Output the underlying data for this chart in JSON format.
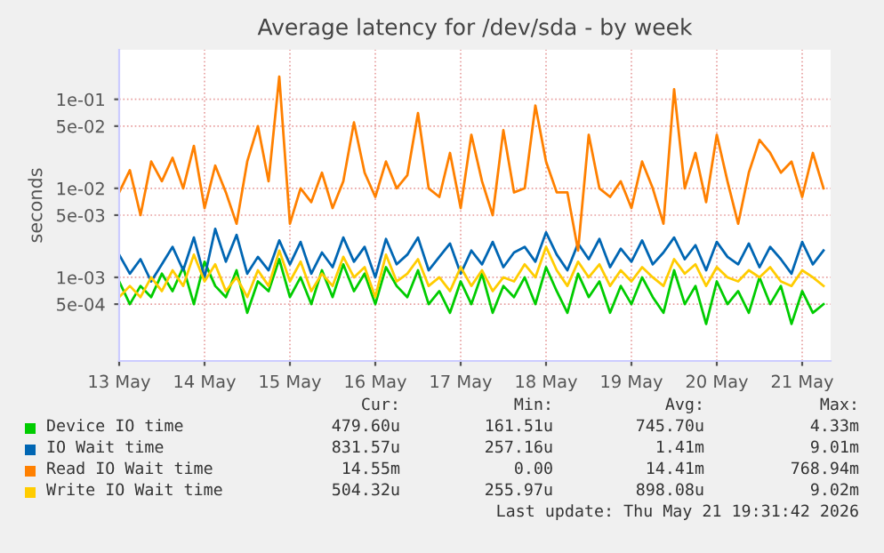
{
  "chart_data": {
    "type": "line",
    "title": "Average latency for /dev/sda - by week",
    "ylabel": "seconds",
    "log": "y",
    "grid": true,
    "legend": "bottom",
    "x": [
      "2026-05-13T12:00",
      "2026-05-13T15:00",
      "2026-05-13T18:00",
      "2026-05-13T21:00",
      "2026-05-14T00:00",
      "2026-05-14T03:00",
      "2026-05-14T06:00",
      "2026-05-14T09:00",
      "2026-05-14T12:00",
      "2026-05-14T15:00",
      "2026-05-14T18:00",
      "2026-05-14T21:00",
      "2026-05-15T00:00",
      "2026-05-15T03:00",
      "2026-05-15T06:00",
      "2026-05-15T09:00",
      "2026-05-15T12:00",
      "2026-05-15T15:00",
      "2026-05-15T18:00",
      "2026-05-15T21:00",
      "2026-05-16T00:00",
      "2026-05-16T03:00",
      "2026-05-16T06:00",
      "2026-05-16T09:00",
      "2026-05-16T12:00",
      "2026-05-16T15:00",
      "2026-05-16T18:00",
      "2026-05-16T21:00",
      "2026-05-17T00:00",
      "2026-05-17T03:00",
      "2026-05-17T06:00",
      "2026-05-17T09:00",
      "2026-05-17T12:00",
      "2026-05-17T15:00",
      "2026-05-17T18:00",
      "2026-05-17T21:00",
      "2026-05-18T00:00",
      "2026-05-18T03:00",
      "2026-05-18T06:00",
      "2026-05-18T09:00",
      "2026-05-18T12:00",
      "2026-05-18T15:00",
      "2026-05-18T18:00",
      "2026-05-18T21:00",
      "2026-05-19T00:00",
      "2026-05-19T03:00",
      "2026-05-19T06:00",
      "2026-05-19T09:00",
      "2026-05-19T12:00",
      "2026-05-19T15:00",
      "2026-05-19T18:00",
      "2026-05-19T21:00",
      "2026-05-20T00:00",
      "2026-05-20T03:00",
      "2026-05-20T06:00",
      "2026-05-20T09:00",
      "2026-05-20T12:00",
      "2026-05-20T15:00",
      "2026-05-20T18:00",
      "2026-05-20T21:00",
      "2026-05-21T00:00",
      "2026-05-21T03:00",
      "2026-05-21T06:00",
      "2026-05-21T09:00",
      "2026-05-21T12:00",
      "2026-05-21T15:00",
      "2026-05-21T18:00"
    ],
    "xlim": [
      "2026-05-13T12:00",
      "2026-05-21T20:00"
    ],
    "xticks": [
      {
        "value": "2026-05-13T12:00",
        "label": "13 May"
      },
      {
        "value": "2026-05-14T12:00",
        "label": "14 May"
      },
      {
        "value": "2026-05-15T12:00",
        "label": "15 May"
      },
      {
        "value": "2026-05-16T12:00",
        "label": "16 May"
      },
      {
        "value": "2026-05-17T12:00",
        "label": "17 May"
      },
      {
        "value": "2026-05-18T12:00",
        "label": "18 May"
      },
      {
        "value": "2026-05-19T12:00",
        "label": "19 May"
      },
      {
        "value": "2026-05-20T12:00",
        "label": "20 May"
      },
      {
        "value": "2026-05-21T12:00",
        "label": "21 May"
      }
    ],
    "ylim": [
      0.000115,
      0.36
    ],
    "yticks": [
      {
        "value": 0.0005,
        "label": "5e-04"
      },
      {
        "value": 0.001,
        "label": "1e-03"
      },
      {
        "value": 0.005,
        "label": "5e-03"
      },
      {
        "value": 0.01,
        "label": "1e-02"
      },
      {
        "value": 0.05,
        "label": "5e-02"
      },
      {
        "value": 0.1,
        "label": "1e-01"
      }
    ],
    "series": [
      {
        "name": "Device IO time",
        "color": "#00cc00",
        "values": [
          0.0009,
          0.0005,
          0.0008,
          0.0006,
          0.0011,
          0.0007,
          0.0013,
          0.0005,
          0.0015,
          0.0008,
          0.0006,
          0.0012,
          0.0004,
          0.0009,
          0.0007,
          0.0016,
          0.0006,
          0.001,
          0.0005,
          0.0012,
          0.0006,
          0.0014,
          0.0007,
          0.0011,
          0.0005,
          0.0013,
          0.0008,
          0.0006,
          0.0012,
          0.0005,
          0.0007,
          0.0004,
          0.0009,
          0.0005,
          0.0011,
          0.0004,
          0.0008,
          0.0006,
          0.001,
          0.0005,
          0.0013,
          0.0007,
          0.0004,
          0.0011,
          0.0006,
          0.0009,
          0.0004,
          0.0008,
          0.0005,
          0.001,
          0.0006,
          0.0004,
          0.0012,
          0.0005,
          0.0008,
          0.0003,
          0.0009,
          0.0005,
          0.0007,
          0.0004,
          0.001,
          0.0005,
          0.0008,
          0.0003,
          0.0007,
          0.0004,
          0.0005
        ]
      },
      {
        "name": "IO Wait time",
        "color": "#0066b3",
        "values": [
          0.0018,
          0.0011,
          0.0016,
          0.0009,
          0.0014,
          0.0022,
          0.0012,
          0.0028,
          0.001,
          0.0035,
          0.0015,
          0.003,
          0.0011,
          0.0017,
          0.0012,
          0.0026,
          0.0014,
          0.0025,
          0.0011,
          0.0019,
          0.0013,
          0.0028,
          0.0015,
          0.0022,
          0.001,
          0.0027,
          0.0014,
          0.0018,
          0.0028,
          0.0012,
          0.0017,
          0.0024,
          0.0011,
          0.002,
          0.0014,
          0.0025,
          0.0013,
          0.0019,
          0.0022,
          0.0015,
          0.0032,
          0.0018,
          0.0012,
          0.0024,
          0.0016,
          0.0027,
          0.0013,
          0.0021,
          0.0015,
          0.0026,
          0.0014,
          0.0019,
          0.0028,
          0.0016,
          0.0023,
          0.0012,
          0.0025,
          0.0017,
          0.0014,
          0.0024,
          0.0013,
          0.0022,
          0.0016,
          0.0011,
          0.0025,
          0.0014,
          0.002
        ]
      },
      {
        "name": "Read IO Wait time",
        "color": "#ff8000",
        "values": [
          0.009,
          0.016,
          0.005,
          0.02,
          0.012,
          0.022,
          0.01,
          0.03,
          0.006,
          0.018,
          0.009,
          0.004,
          0.02,
          0.05,
          0.012,
          0.18,
          0.004,
          0.01,
          0.007,
          0.015,
          0.006,
          0.012,
          0.055,
          0.015,
          0.008,
          0.02,
          0.01,
          0.014,
          0.07,
          0.01,
          0.008,
          0.025,
          0.006,
          0.04,
          0.012,
          0.005,
          0.045,
          0.009,
          0.01,
          0.085,
          0.02,
          0.009,
          0.009,
          0.002,
          0.04,
          0.01,
          0.008,
          0.012,
          0.006,
          0.02,
          0.01,
          0.004,
          0.13,
          0.01,
          0.025,
          0.007,
          0.04,
          0.012,
          0.004,
          0.015,
          0.035,
          0.025,
          0.015,
          0.02,
          0.008,
          0.025,
          0.01
        ]
      },
      {
        "name": "Write IO Wait time",
        "color": "#ffcc00",
        "values": [
          0.0006,
          0.0008,
          0.0006,
          0.001,
          0.0007,
          0.0012,
          0.0008,
          0.0018,
          0.0009,
          0.0014,
          0.0007,
          0.001,
          0.0006,
          0.0012,
          0.0008,
          0.002,
          0.0009,
          0.0015,
          0.0007,
          0.0011,
          0.0008,
          0.0017,
          0.001,
          0.0013,
          0.0006,
          0.0018,
          0.0009,
          0.0011,
          0.0016,
          0.0008,
          0.001,
          0.0007,
          0.0013,
          0.0008,
          0.0012,
          0.0007,
          0.001,
          0.0009,
          0.0014,
          0.001,
          0.0022,
          0.0012,
          0.0008,
          0.0015,
          0.001,
          0.0014,
          0.0008,
          0.0012,
          0.0009,
          0.0013,
          0.001,
          0.0008,
          0.0016,
          0.0011,
          0.0014,
          0.0008,
          0.0013,
          0.001,
          0.0009,
          0.0012,
          0.001,
          0.0013,
          0.0009,
          0.0008,
          0.0012,
          0.001,
          0.0008
        ]
      }
    ],
    "annotations": [
      "Cur:",
      "Min:",
      "Avg:",
      "Max:",
      "479.60u",
      "161.51u",
      "745.70u",
      "4.33m",
      "831.57u",
      "257.16u",
      "1.41m",
      "9.01m",
      "14.55m",
      "0.00",
      "14.41m",
      "768.94m",
      "504.32u",
      "255.97u",
      "898.08u",
      "9.02m",
      "Last update: Thu May 21 19:31:42 2026"
    ]
  }
}
